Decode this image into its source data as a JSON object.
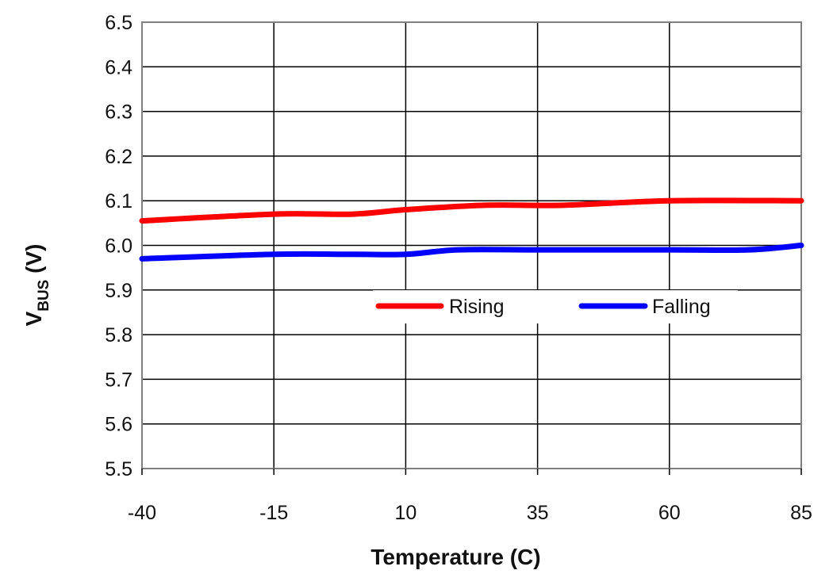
{
  "chart_data": {
    "type": "line",
    "title": "",
    "xlabel": "Temperature (C)",
    "ylabel": {
      "main": "V",
      "subscript": "BUS",
      "suffix": " (V)"
    },
    "x": [
      -40,
      -15,
      10,
      35,
      60,
      85
    ],
    "xticks": [
      "-40",
      "-15",
      "10",
      "35",
      "60",
      "85"
    ],
    "xlim": [
      -40,
      85
    ],
    "yticks": [
      "5.5",
      "5.6",
      "5.7",
      "5.8",
      "5.9",
      "6.0",
      "6.1",
      "6.2",
      "6.3",
      "6.4",
      "6.5"
    ],
    "ylim": [
      5.5,
      6.5
    ],
    "grid": true,
    "legend_position": "center",
    "series": [
      {
        "name": "Rising",
        "color": "#ff0000",
        "x": [
          -40,
          -15,
          0,
          10,
          25,
          40,
          60,
          85
        ],
        "values": [
          6.055,
          6.07,
          6.07,
          6.08,
          6.09,
          6.09,
          6.1,
          6.1
        ]
      },
      {
        "name": "Falling",
        "color": "#0000ff",
        "x": [
          -40,
          -15,
          0,
          10,
          20,
          35,
          60,
          75,
          85
        ],
        "values": [
          5.97,
          5.98,
          5.98,
          5.98,
          5.99,
          5.99,
          5.99,
          5.99,
          6.0
        ]
      }
    ]
  }
}
